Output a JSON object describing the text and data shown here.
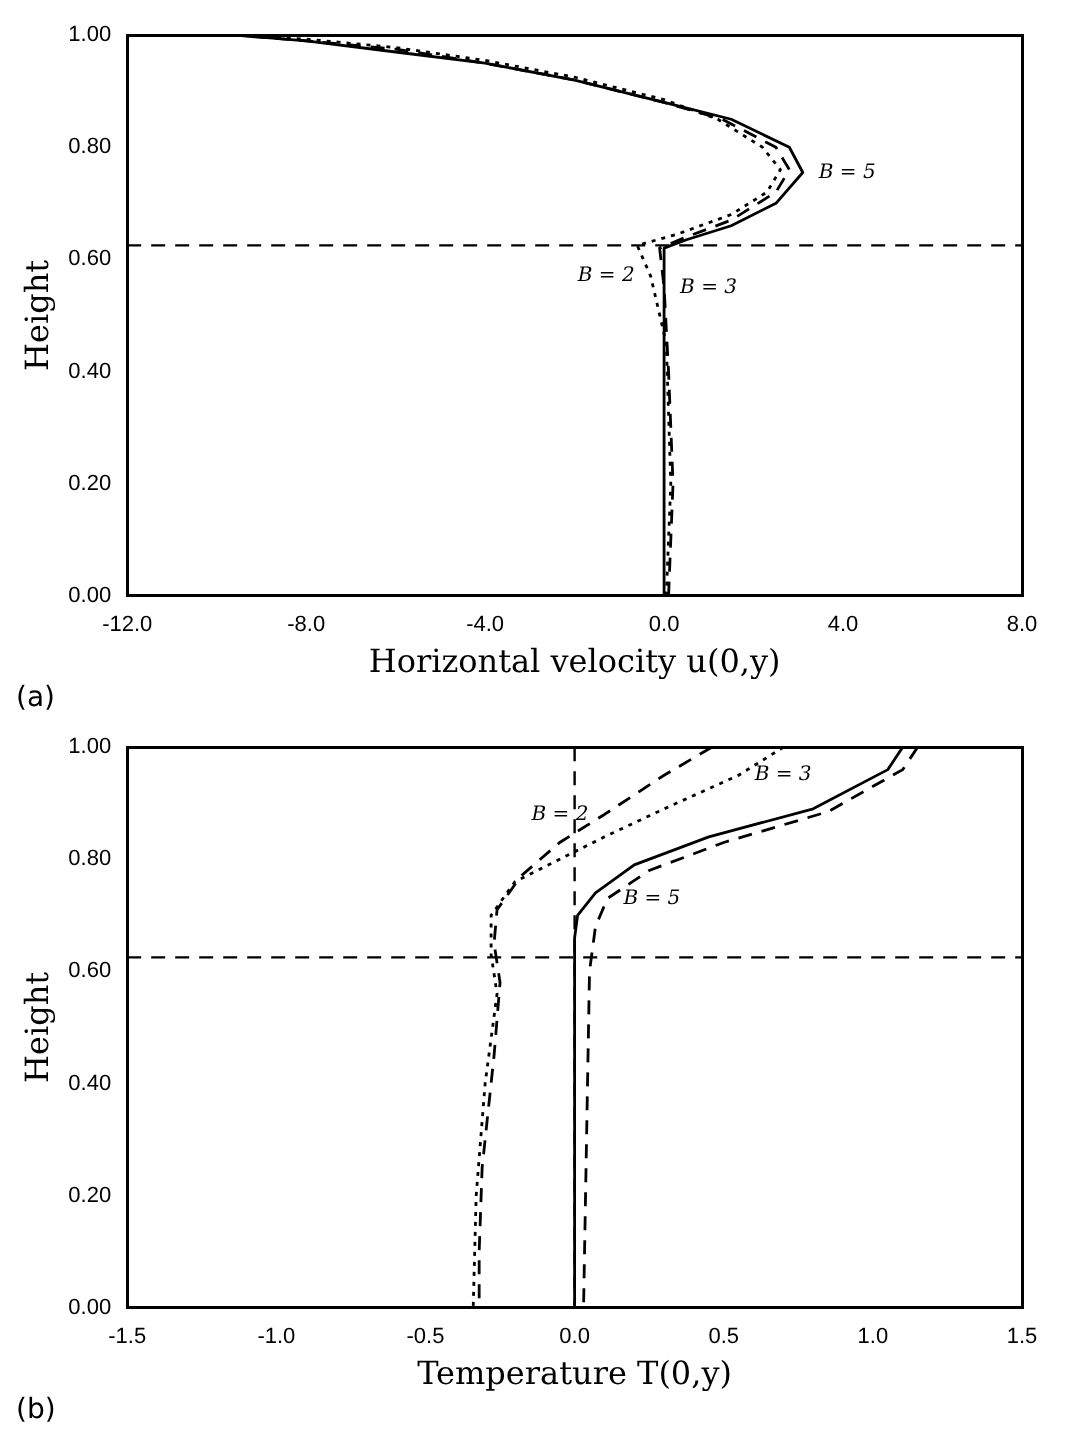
{
  "chart_data": [
    {
      "type": "line",
      "title": "(a)",
      "xlabel": "Horizontal velocity u(0,y)",
      "ylabel": "Height",
      "xlim": [
        -12,
        8
      ],
      "xticks": [
        {
          "value": -12,
          "label": "-12.0"
        },
        {
          "value": -8,
          "label": "-8.0"
        },
        {
          "value": -4,
          "label": "-4.0"
        },
        {
          "value": 0,
          "label": "0.0"
        },
        {
          "value": 4,
          "label": "4.0"
        },
        {
          "value": 8,
          "label": "8.0"
        }
      ],
      "ylim": [
        0,
        1
      ],
      "yticks": [
        {
          "value": 0,
          "label": "0.00"
        },
        {
          "value": 0.2,
          "label": "0.20"
        },
        {
          "value": 0.4,
          "label": "0.40"
        },
        {
          "value": 0.6,
          "label": "0.60"
        },
        {
          "value": 0.8,
          "label": "0.80"
        },
        {
          "value": 1,
          "label": "1.00"
        }
      ],
      "grid": false,
      "legend": false,
      "marker": "none",
      "series": [
        {
          "color": "#000000",
          "line_style": "solid",
          "x": [
            0,
            0,
            0.5,
            1.5,
            2.5,
            3.1,
            2.8,
            1.5,
            0,
            -2,
            -4,
            -6,
            -8,
            -9.6
          ],
          "values": [
            0,
            0.62,
            0.635,
            0.66,
            0.7,
            0.755,
            0.8,
            0.85,
            0.88,
            0.92,
            0.95,
            0.97,
            0.99,
            1
          ]
        },
        {
          "color": "#000000",
          "line_style": "dashed",
          "x": [
            0.1,
            0.2,
            0.1,
            0,
            -0.1,
            0.5,
            1.5,
            2.5,
            2.8,
            2.5,
            1.3,
            0,
            -2,
            -4,
            -6,
            -8,
            -9.6
          ],
          "values": [
            0,
            0.2,
            0.4,
            0.55,
            0.62,
            0.64,
            0.67,
            0.72,
            0.76,
            0.8,
            0.85,
            0.88,
            0.92,
            0.95,
            0.975,
            0.99,
            1
          ]
        },
        {
          "color": "#000000",
          "line_style": "dotted",
          "x": [
            0.05,
            0.15,
            0.05,
            -0.3,
            -0.6,
            0.3,
            1.5,
            2.3,
            2.6,
            2.2,
            1.2,
            0,
            -2,
            -4,
            -6,
            -8,
            -9.6
          ],
          "values": [
            0,
            0.2,
            0.45,
            0.57,
            0.625,
            0.645,
            0.68,
            0.72,
            0.76,
            0.8,
            0.85,
            0.885,
            0.925,
            0.955,
            0.978,
            0.993,
            1
          ]
        }
      ],
      "ref_lines": [
        {
          "axis": "y",
          "value": 0.625,
          "line_style": "dashed"
        }
      ],
      "annotations": [
        {
          "text": "B = 5",
          "x": 3.1,
          "y": 0.755
        },
        {
          "text": "B = 2",
          "x": -0.3,
          "y": 0.57
        },
        {
          "text": "B = 3",
          "x": 0,
          "y": 0.55
        }
      ]
    },
    {
      "type": "line",
      "title": "(b)",
      "xlabel": "Temperature T(0,y)",
      "ylabel": "Height",
      "xlim": [
        -1.5,
        1.5
      ],
      "xticks": [
        {
          "value": -1.5,
          "label": "-1.5"
        },
        {
          "value": -1,
          "label": "-1.0"
        },
        {
          "value": -0.5,
          "label": "-0.5"
        },
        {
          "value": 0,
          "label": "0.0"
        },
        {
          "value": 0.5,
          "label": "0.5"
        },
        {
          "value": 1,
          "label": "1.0"
        },
        {
          "value": 1.5,
          "label": "1.5"
        }
      ],
      "ylim": [
        0,
        1
      ],
      "yticks": [
        {
          "value": 0,
          "label": "0.00"
        },
        {
          "value": 0.2,
          "label": "0.20"
        },
        {
          "value": 0.4,
          "label": "0.40"
        },
        {
          "value": 0.6,
          "label": "0.60"
        },
        {
          "value": 0.8,
          "label": "0.80"
        },
        {
          "value": 1,
          "label": "1.00"
        }
      ],
      "grid": false,
      "legend": false,
      "marker": "none",
      "series": [
        {
          "color": "#000000",
          "line_style": "dashed",
          "x": [
            0.46,
            0.3,
            0.1,
            -0.05,
            -0.18,
            -0.26,
            -0.27,
            -0.25,
            -0.27,
            -0.31,
            -0.32,
            -0.32
          ],
          "values": [
            1,
            0.95,
            0.88,
            0.83,
            0.77,
            0.71,
            0.65,
            0.58,
            0.45,
            0.25,
            0.1,
            0
          ]
        },
        {
          "color": "#000000",
          "line_style": "dotted",
          "x": [
            0.7,
            0.55,
            0.3,
            0.1,
            -0.05,
            -0.2,
            -0.28,
            -0.28,
            -0.26,
            -0.3,
            -0.33,
            -0.34
          ],
          "values": [
            1,
            0.95,
            0.89,
            0.84,
            0.8,
            0.76,
            0.7,
            0.63,
            0.56,
            0.4,
            0.2,
            0
          ]
        },
        {
          "color": "#000000",
          "line_style": "solid",
          "x": [
            1.1,
            1.05,
            0.8,
            0.45,
            0.2,
            0.07,
            0.01,
            0,
            0
          ],
          "values": [
            1,
            0.96,
            0.89,
            0.84,
            0.79,
            0.74,
            0.7,
            0.66,
            0
          ]
        },
        {
          "color": "#000000",
          "line_style": "dashed",
          "x": [
            1.15,
            1.1,
            0.85,
            0.5,
            0.25,
            0.11,
            0.07,
            0.05,
            0.04,
            0.03
          ],
          "values": [
            1,
            0.96,
            0.885,
            0.83,
            0.78,
            0.73,
            0.68,
            0.6,
            0.3,
            0
          ]
        }
      ],
      "ref_lines": [
        {
          "axis": "y",
          "value": 0.625,
          "line_style": "dashed"
        },
        {
          "axis": "x",
          "value": 0,
          "line_style": "dashed"
        }
      ],
      "annotations": [
        {
          "text": "B = 2",
          "x": 0.1,
          "y": 0.88
        },
        {
          "text": "B = 3",
          "x": 0.55,
          "y": 0.95
        },
        {
          "text": "B = 5",
          "x": 0.11,
          "y": 0.73
        }
      ]
    }
  ]
}
